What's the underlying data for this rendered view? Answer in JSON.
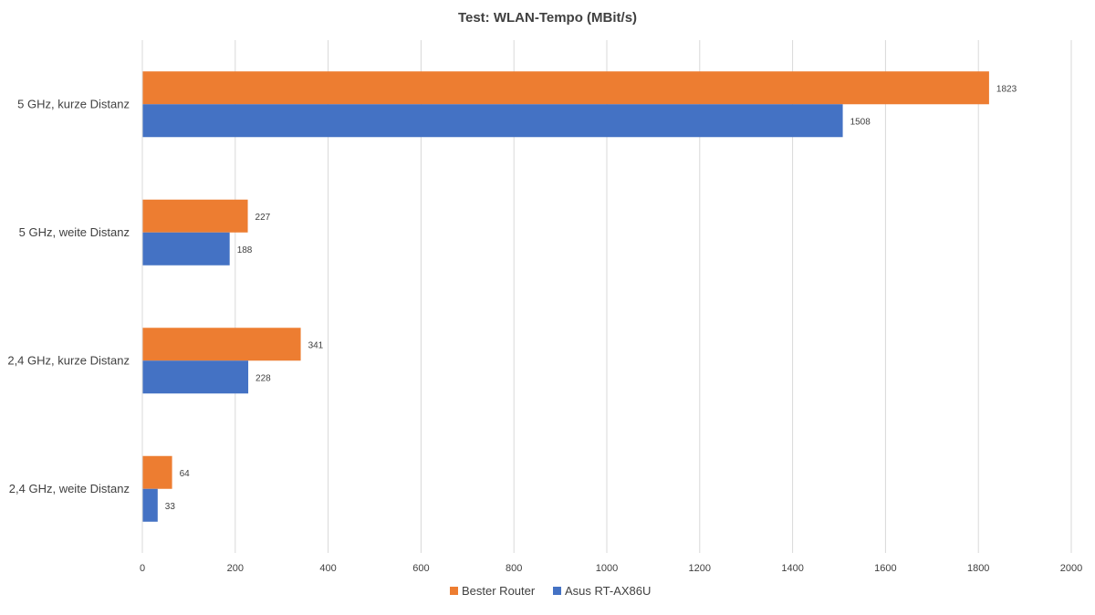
{
  "chart_data": {
    "type": "bar",
    "orientation": "horizontal",
    "title": "Test: WLAN-Tempo (MBit/s)",
    "categories": [
      "5 GHz, kurze Distanz",
      "5 GHz, weite Distanz",
      "2,4 GHz, kurze Distanz",
      "2,4 GHz, weite Distanz"
    ],
    "series": [
      {
        "name": "Bester Router",
        "color": "#ED7D31",
        "values": [
          1823,
          227,
          341,
          64
        ]
      },
      {
        "name": "Asus RT-AX86U",
        "color": "#4472C4",
        "values": [
          1508,
          188,
          228,
          33
        ]
      }
    ],
    "xlim": [
      0,
      2000
    ],
    "xticks": [
      0,
      200,
      400,
      600,
      800,
      1000,
      1200,
      1400,
      1600,
      1800,
      2000
    ],
    "xtick_labels": [
      "0",
      "200",
      "400",
      "600",
      "800",
      "1000",
      "1200",
      "1400",
      "1600",
      "1800",
      "2000"
    ],
    "grid": true,
    "legend_position": "bottom",
    "data_labels": true
  }
}
